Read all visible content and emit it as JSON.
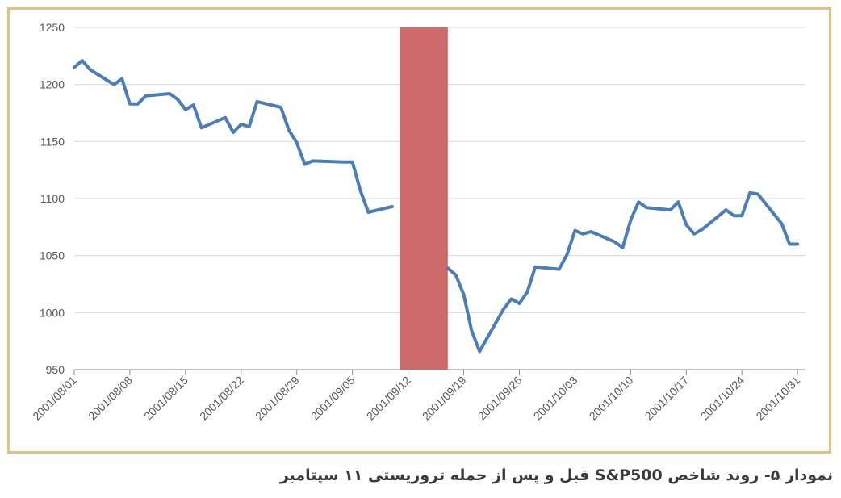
{
  "caption": "نمودار ۵- روند شاخص S&P500 قبل و پس از حمله تروریستی ۱۱ سپتامبر",
  "chart_data": {
    "type": "line",
    "title": "",
    "xlabel": "",
    "ylabel": "",
    "x_ticks": [
      "2001/08/01",
      "2001/08/08",
      "2001/08/15",
      "2001/08/22",
      "2001/08/29",
      "2001/09/05",
      "2001/09/12",
      "2001/09/19",
      "2001/09/26",
      "2001/10/03",
      "2001/10/10",
      "2001/10/17",
      "2001/10/24",
      "2001/10/31"
    ],
    "xlim": [
      "2001/08/01",
      "2001/11/01"
    ],
    "y_ticks": [
      950,
      1000,
      1050,
      1100,
      1150,
      1200,
      1250
    ],
    "ylim": [
      950,
      1250
    ],
    "grid": "horizontal",
    "line_color": "#4a7ebb",
    "highlight": {
      "from": "2001/09/11",
      "to": "2001/09/17",
      "color": "#cd6b6b"
    },
    "segments": [
      [
        [
          "2001/08/01",
          1215
        ],
        [
          "2001/08/02",
          1221
        ],
        [
          "2001/08/03",
          1213
        ],
        [
          "2001/08/06",
          1200
        ],
        [
          "2001/08/07",
          1205
        ],
        [
          "2001/08/08",
          1183
        ],
        [
          "2001/08/09",
          1183
        ],
        [
          "2001/08/10",
          1190
        ],
        [
          "2001/08/13",
          1192
        ],
        [
          "2001/08/14",
          1187
        ],
        [
          "2001/08/15",
          1178
        ],
        [
          "2001/08/16",
          1182
        ],
        [
          "2001/08/17",
          1162
        ],
        [
          "2001/08/20",
          1171
        ],
        [
          "2001/08/21",
          1158
        ],
        [
          "2001/08/22",
          1165
        ],
        [
          "2001/08/23",
          1163
        ],
        [
          "2001/08/24",
          1185
        ],
        [
          "2001/08/27",
          1180
        ],
        [
          "2001/08/28",
          1160
        ],
        [
          "2001/08/29",
          1149
        ],
        [
          "2001/08/30",
          1130
        ],
        [
          "2001/08/31",
          1133
        ],
        [
          "2001/09/04",
          1132
        ],
        [
          "2001/09/05",
          1132
        ],
        [
          "2001/09/06",
          1107
        ],
        [
          "2001/09/07",
          1088
        ],
        [
          "2001/09/10",
          1093
        ]
      ],
      [
        [
          "2001/09/17",
          1039
        ],
        [
          "2001/09/18",
          1033
        ],
        [
          "2001/09/19",
          1016
        ],
        [
          "2001/09/20",
          984
        ],
        [
          "2001/09/21",
          966
        ],
        [
          "2001/09/24",
          1003
        ],
        [
          "2001/09/25",
          1012
        ],
        [
          "2001/09/26",
          1008
        ],
        [
          "2001/09/27",
          1018
        ],
        [
          "2001/09/28",
          1040
        ],
        [
          "2001/10/01",
          1038
        ],
        [
          "2001/10/02",
          1051
        ],
        [
          "2001/10/03",
          1072
        ],
        [
          "2001/10/04",
          1069
        ],
        [
          "2001/10/05",
          1071
        ],
        [
          "2001/10/08",
          1062
        ],
        [
          "2001/10/09",
          1057
        ],
        [
          "2001/10/10",
          1081
        ],
        [
          "2001/10/11",
          1097
        ],
        [
          "2001/10/12",
          1092
        ],
        [
          "2001/10/15",
          1090
        ],
        [
          "2001/10/16",
          1097
        ],
        [
          "2001/10/17",
          1077
        ],
        [
          "2001/10/18",
          1069
        ],
        [
          "2001/10/19",
          1073
        ],
        [
          "2001/10/22",
          1090
        ],
        [
          "2001/10/23",
          1085
        ],
        [
          "2001/10/24",
          1085
        ],
        [
          "2001/10/25",
          1105
        ],
        [
          "2001/10/26",
          1104
        ],
        [
          "2001/10/29",
          1078
        ],
        [
          "2001/10/30",
          1060
        ],
        [
          "2001/10/31",
          1060
        ]
      ]
    ]
  }
}
